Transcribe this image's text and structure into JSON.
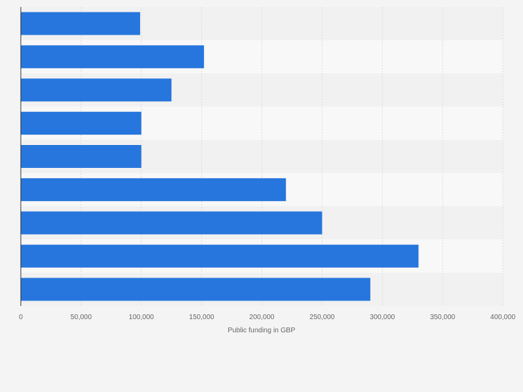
{
  "chart_data": {
    "type": "bar",
    "orientation": "horizontal",
    "categories": [
      "",
      "",
      "",
      "",
      "",
      "",
      "",
      "",
      ""
    ],
    "values": [
      99000,
      152000,
      125000,
      100000,
      100000,
      220000,
      250000,
      330000,
      290000
    ],
    "title": "",
    "xlabel": "Public funding in GBP",
    "ylabel": "",
    "xlim": [
      0,
      400000
    ],
    "xticks": [
      0,
      50000,
      100000,
      150000,
      200000,
      250000,
      300000,
      350000,
      400000
    ],
    "xtick_labels": [
      "0",
      "50,000",
      "100,000",
      "150,000",
      "200,000",
      "250,000",
      "300,000",
      "350,000",
      "400,000"
    ],
    "grid": true,
    "legend": "none",
    "colors": {
      "bar": "#2776dd",
      "band_dark": "#f1f1f1",
      "band_light": "#f8f8f8",
      "grid": "#dcdcdc",
      "axis": "#333333",
      "tick_text": "#666666",
      "label_text": "#666666"
    }
  }
}
